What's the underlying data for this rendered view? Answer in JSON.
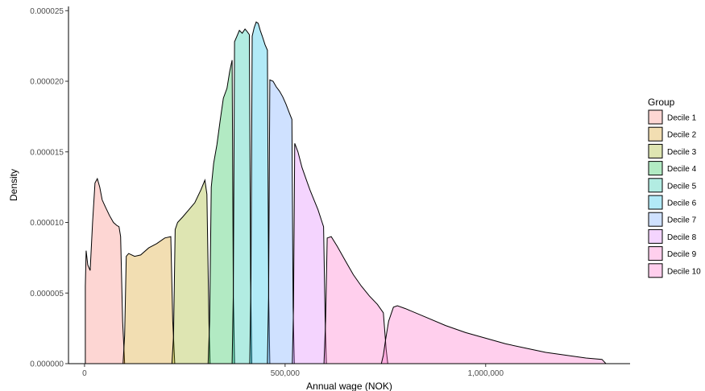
{
  "chart_data": {
    "type": "area",
    "xlabel": "Annual wage (NOK)",
    "ylabel": "Density",
    "xlim": [
      -40000,
      1360000
    ],
    "ylim": [
      0,
      2.53e-05
    ],
    "x_ticks": [
      {
        "value": 0,
        "label": "0"
      },
      {
        "value": 500000,
        "label": "500,000"
      },
      {
        "value": 1000000,
        "label": "1,000,000"
      }
    ],
    "y_ticks": [
      {
        "value": 0,
        "label": "0.000000"
      },
      {
        "value": 5e-06,
        "label": "0.000005"
      },
      {
        "value": 1e-05,
        "label": "0.000010"
      },
      {
        "value": 1.5e-05,
        "label": "0.000015"
      },
      {
        "value": 2e-05,
        "label": "0.000020"
      },
      {
        "value": 2.5e-05,
        "label": "0.000025"
      }
    ],
    "grid": false,
    "legend": {
      "title": "Group",
      "position": "right"
    },
    "series": [
      {
        "name": "Decile 1",
        "color": "#F8766D",
        "x": [
          2000,
          4000,
          8000,
          14000,
          20000,
          26000,
          32000,
          38000,
          44000,
          52000,
          62000,
          72000,
          80000,
          86000,
          90000,
          95000,
          100000
        ],
        "y": [
          5.5e-06,
          8e-06,
          7e-06,
          6.6e-06,
          1e-05,
          1.28e-05,
          1.31e-05,
          1.25e-05,
          1.16e-05,
          1.11e-05,
          1.05e-05,
          1e-05,
          9.8e-06,
          9.7e-06,
          9e-06,
          3e-06,
          0
        ]
      },
      {
        "name": "Decile 2",
        "color": "#D39200",
        "x": [
          96000,
          100000,
          104000,
          110000,
          125000,
          140000,
          160000,
          180000,
          200000,
          215000,
          220000,
          225000
        ],
        "y": [
          0,
          2e-06,
          7.6e-06,
          7.8e-06,
          7.6e-06,
          7.7e-06,
          8.2e-06,
          8.5e-06,
          8.9e-06,
          9e-06,
          3e-06,
          0
        ]
      },
      {
        "name": "Decile 3",
        "color": "#93AA00",
        "x": [
          218000,
          222000,
          226000,
          232000,
          245000,
          260000,
          275000,
          290000,
          300000,
          305000,
          310000,
          313000
        ],
        "y": [
          0,
          2e-06,
          9.5e-06,
          1e-05,
          1.04e-05,
          1.09e-05,
          1.14e-05,
          1.23e-05,
          1.3e-05,
          1.2e-05,
          3e-06,
          0
        ]
      },
      {
        "name": "Decile 4",
        "color": "#00BA38",
        "x": [
          308000,
          312000,
          316000,
          322000,
          330000,
          338000,
          346000,
          355000,
          362000,
          368000,
          371000,
          374000
        ],
        "y": [
          0,
          3e-06,
          1.25e-05,
          1.42e-05,
          1.55e-05,
          1.72e-05,
          1.88e-05,
          1.95e-05,
          2.07e-05,
          2.15e-05,
          5e-06,
          0
        ]
      },
      {
        "name": "Decile 5",
        "color": "#00C19F",
        "x": [
          368000,
          371000,
          374000,
          380000,
          386000,
          393000,
          400000,
          406000,
          411000,
          414000,
          417000
        ],
        "y": [
          0,
          5e-06,
          2.28e-05,
          2.32e-05,
          2.36e-05,
          2.34e-05,
          2.37e-05,
          2.35e-05,
          2.33e-05,
          6e-06,
          0
        ]
      },
      {
        "name": "Decile 6",
        "color": "#00B9E3",
        "x": [
          412000,
          415000,
          418000,
          423000,
          428000,
          433000,
          438000,
          443000,
          450000,
          456000,
          459000,
          462000
        ],
        "y": [
          0,
          6e-06,
          2.32e-05,
          2.38e-05,
          2.42e-05,
          2.41e-05,
          2.36e-05,
          2.32e-05,
          2.26e-05,
          2.22e-05,
          5e-06,
          0
        ]
      },
      {
        "name": "Decile 7",
        "color": "#619CFF",
        "x": [
          456000,
          459000,
          462000,
          470000,
          478000,
          486000,
          494000,
          502000,
          510000,
          517000,
          520000,
          523000
        ],
        "y": [
          0,
          5e-06,
          2.01e-05,
          2e-05,
          1.96e-05,
          1.93e-05,
          1.89e-05,
          1.84e-05,
          1.78e-05,
          1.73e-05,
          4e-06,
          0
        ]
      },
      {
        "name": "Decile 8",
        "color": "#DB72FB",
        "x": [
          518000,
          521000,
          524000,
          532000,
          542000,
          552000,
          562000,
          572000,
          582000,
          590000,
          596000,
          600000,
          603000
        ],
        "y": [
          0,
          4e-06,
          1.56e-05,
          1.5e-05,
          1.39e-05,
          1.31e-05,
          1.23e-05,
          1.16e-05,
          1.09e-05,
          1.02e-05,
          9.7e-06,
          3e-06,
          0
        ]
      },
      {
        "name": "Decile 9",
        "color": "#FF61C3",
        "x": [
          597000,
          601000,
          605000,
          615000,
          630000,
          650000,
          670000,
          690000,
          710000,
          730000,
          745000,
          752000,
          756000
        ],
        "y": [
          0,
          3e-06,
          8.9e-06,
          9e-06,
          8.3e-06,
          7.3e-06,
          6.3e-06,
          5.5e-06,
          4.8e-06,
          4.2e-06,
          3.6e-06,
          1e-06,
          0
        ]
      },
      {
        "name": "Decile 10",
        "color": "#FF61C3",
        "x": [
          740000,
          745000,
          750000,
          758000,
          770000,
          780000,
          800000,
          850000,
          900000,
          950000,
          1000000,
          1050000,
          1100000,
          1150000,
          1200000,
          1250000,
          1290000,
          1300000
        ],
        "y": [
          0,
          6e-07,
          1.6e-06,
          3e-06,
          4e-06,
          4.1e-06,
          3.9e-06,
          3.3e-06,
          2.7e-06,
          2.2e-06,
          1.8e-06,
          1.4e-06,
          1.1e-06,
          8e-07,
          6e-07,
          4e-07,
          3e-07,
          0
        ]
      }
    ]
  }
}
